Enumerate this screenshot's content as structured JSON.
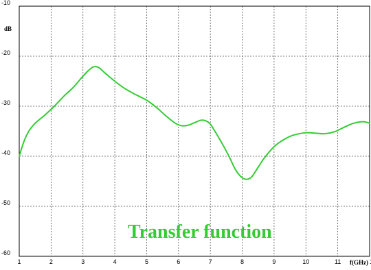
{
  "chart_data": {
    "type": "line",
    "title": "",
    "xlabel": "f(GHz)",
    "ylabel": "dB",
    "xlim": [
      1,
      12
    ],
    "ylim": [
      -60,
      -10
    ],
    "x_ticks": [
      1,
      2,
      3,
      4,
      5,
      6,
      7,
      8,
      9,
      10,
      11,
      12
    ],
    "x_tick_labels": [
      "1",
      "2",
      "3",
      "4",
      "5",
      "6",
      "7",
      "8",
      "9",
      "10",
      "11",
      "12"
    ],
    "y_ticks": [
      -10,
      -20,
      -30,
      -40,
      -50,
      -60
    ],
    "y_tick_labels": [
      "-10",
      "-20",
      "-30",
      "-40",
      "-50",
      "-60"
    ],
    "grid": true,
    "grid_style": "dashed",
    "legend": "none",
    "annotation": "Transfer function",
    "annotation_color": "#33cc33",
    "series": [
      {
        "color": "#33cc33",
        "x": [
          1.0,
          1.15,
          1.3,
          1.5,
          1.8,
          2.1,
          2.4,
          2.7,
          3.0,
          3.2,
          3.35,
          3.5,
          3.7,
          4.0,
          4.3,
          4.6,
          5.0,
          5.3,
          5.6,
          5.9,
          6.1,
          6.3,
          6.5,
          6.7,
          6.85,
          7.0,
          7.2,
          7.4,
          7.6,
          7.8,
          8.0,
          8.15,
          8.3,
          8.5,
          8.7,
          9.0,
          9.3,
          9.6,
          10.0,
          10.3,
          10.6,
          10.9,
          11.2,
          11.5,
          11.8,
          12.0
        ],
        "y": [
          -40.0,
          -37.0,
          -35.0,
          -33.4,
          -31.8,
          -30.0,
          -28.0,
          -26.2,
          -24.0,
          -22.7,
          -22.1,
          -22.3,
          -23.4,
          -25.0,
          -26.4,
          -27.5,
          -28.8,
          -30.2,
          -31.9,
          -33.4,
          -33.9,
          -33.8,
          -33.3,
          -32.8,
          -32.9,
          -33.6,
          -35.6,
          -37.8,
          -40.2,
          -42.8,
          -44.3,
          -44.6,
          -44.1,
          -42.2,
          -40.3,
          -38.1,
          -36.7,
          -35.8,
          -35.3,
          -35.4,
          -35.5,
          -35.1,
          -34.2,
          -33.4,
          -33.1,
          -33.4
        ]
      }
    ]
  }
}
